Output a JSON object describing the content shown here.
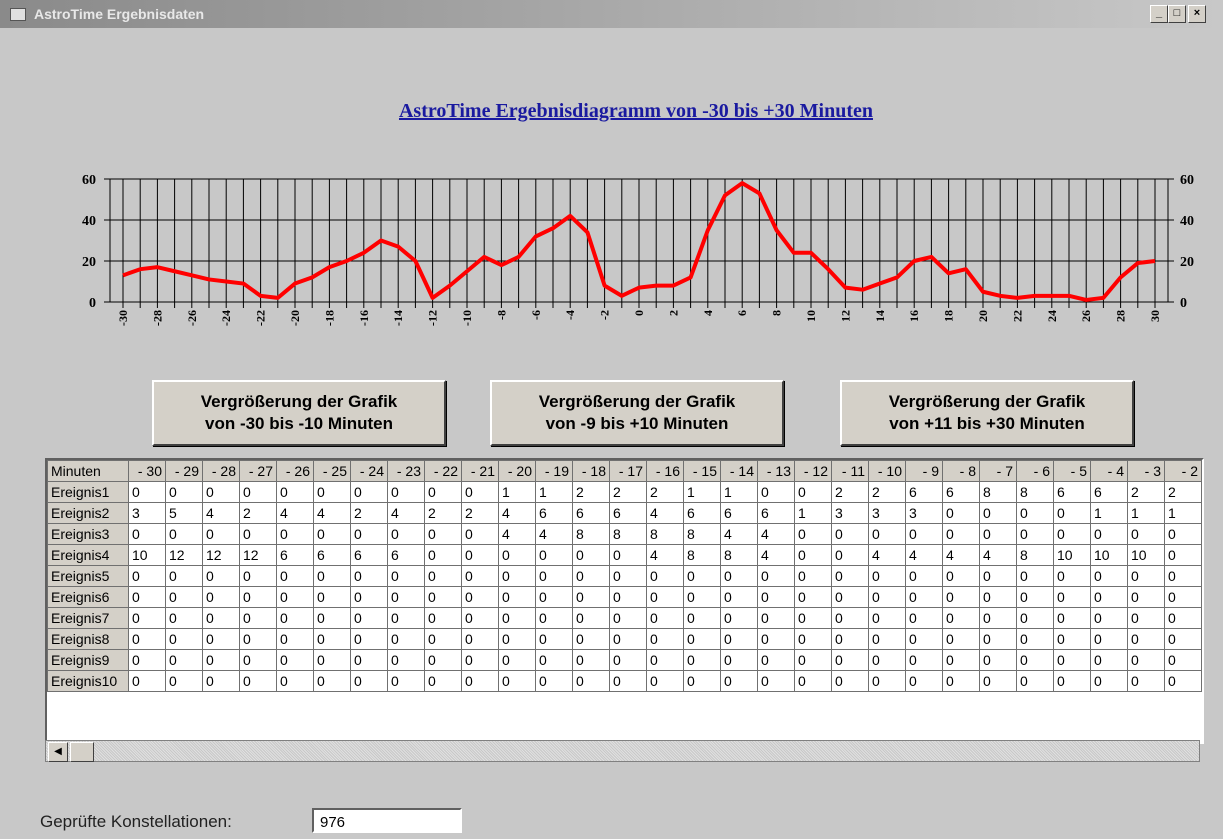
{
  "window": {
    "title": "AstroTime Ergebnisdaten"
  },
  "chart_data": {
    "type": "line",
    "title": "AstroTime Ergebnisdiagramm von -30 bis +30 Minuten",
    "x": [
      -30,
      -29,
      -28,
      -27,
      -26,
      -25,
      -24,
      -23,
      -22,
      -21,
      -20,
      -19,
      -18,
      -17,
      -16,
      -15,
      -14,
      -13,
      -12,
      -11,
      -10,
      -9,
      -8,
      -7,
      -6,
      -5,
      -4,
      -3,
      -2,
      -1,
      0,
      1,
      2,
      3,
      4,
      5,
      6,
      7,
      8,
      9,
      10,
      11,
      12,
      13,
      14,
      15,
      16,
      17,
      18,
      19,
      20,
      21,
      22,
      23,
      24,
      25,
      26,
      27,
      28,
      29,
      30
    ],
    "series": [
      {
        "color": "#ff0000",
        "values": [
          13,
          16,
          17,
          15,
          13,
          11,
          10,
          9,
          3,
          2,
          9,
          12,
          17,
          20,
          24,
          30,
          27,
          20,
          2,
          8,
          15,
          22,
          18,
          22,
          32,
          36,
          42,
          34,
          8,
          3,
          7,
          8,
          8,
          12,
          35,
          52,
          58,
          53,
          35,
          24,
          24,
          16,
          7,
          6,
          9,
          12,
          20,
          22,
          14,
          16,
          5,
          3,
          2,
          3,
          3,
          3,
          1,
          2,
          12,
          19,
          20
        ]
      }
    ],
    "xlim": [
      -30,
      30
    ],
    "xticks": [
      -30,
      -28,
      -26,
      -24,
      -22,
      -20,
      -18,
      -16,
      -14,
      -12,
      -10,
      -8,
      -6,
      -4,
      -2,
      0,
      2,
      4,
      6,
      8,
      10,
      12,
      14,
      16,
      18,
      20,
      22,
      24,
      26,
      28,
      30
    ],
    "ylim": [
      0,
      60
    ],
    "yticks": [
      0,
      20,
      40,
      60
    ],
    "y2lim": [
      0,
      60
    ],
    "y2ticks": [
      0,
      20,
      40,
      60
    ],
    "grid": true
  },
  "buttons": [
    [
      "Vergrößerung der Grafik",
      "von -30 bis -10 Minuten"
    ],
    [
      "Vergrößerung der Grafik",
      "von -9 bis +10 Minuten"
    ],
    [
      "Vergrößerung der Grafik",
      "von +11  bis +30 Minuten"
    ]
  ],
  "table": {
    "header": [
      "Minuten",
      "- 30",
      "- 29",
      "- 28",
      "- 27",
      "- 26",
      "- 25",
      "- 24",
      "- 23",
      "- 22",
      "- 21",
      "- 20",
      "- 19",
      "- 18",
      "- 17",
      "- 16",
      "- 15",
      "- 14",
      "- 13",
      "- 12",
      "- 11",
      "- 10",
      "- 9",
      "- 8",
      "- 7",
      "- 6",
      "- 5",
      "- 4",
      "- 3",
      "- 2"
    ],
    "rows": [
      {
        "label": "Ereignis1",
        "values": [
          0,
          0,
          0,
          0,
          0,
          0,
          0,
          0,
          0,
          0,
          1,
          1,
          2,
          2,
          2,
          1,
          1,
          0,
          0,
          2,
          2,
          6,
          6,
          8,
          8,
          6,
          6,
          2,
          2
        ]
      },
      {
        "label": "Ereignis2",
        "values": [
          3,
          5,
          4,
          2,
          4,
          4,
          2,
          4,
          2,
          2,
          4,
          6,
          6,
          6,
          4,
          6,
          6,
          6,
          1,
          3,
          3,
          3,
          0,
          0,
          0,
          0,
          1,
          1,
          1
        ]
      },
      {
        "label": "Ereignis3",
        "values": [
          0,
          0,
          0,
          0,
          0,
          0,
          0,
          0,
          0,
          0,
          4,
          4,
          8,
          8,
          8,
          8,
          4,
          4,
          0,
          0,
          0,
          0,
          0,
          0,
          0,
          0,
          0,
          0,
          0
        ]
      },
      {
        "label": "Ereignis4",
        "values": [
          10,
          12,
          12,
          12,
          6,
          6,
          6,
          6,
          0,
          0,
          0,
          0,
          0,
          0,
          4,
          8,
          8,
          4,
          0,
          0,
          4,
          4,
          4,
          4,
          8,
          10,
          10,
          10,
          0
        ]
      },
      {
        "label": "Ereignis5",
        "values": [
          0,
          0,
          0,
          0,
          0,
          0,
          0,
          0,
          0,
          0,
          0,
          0,
          0,
          0,
          0,
          0,
          0,
          0,
          0,
          0,
          0,
          0,
          0,
          0,
          0,
          0,
          0,
          0,
          0
        ]
      },
      {
        "label": "Ereignis6",
        "values": [
          0,
          0,
          0,
          0,
          0,
          0,
          0,
          0,
          0,
          0,
          0,
          0,
          0,
          0,
          0,
          0,
          0,
          0,
          0,
          0,
          0,
          0,
          0,
          0,
          0,
          0,
          0,
          0,
          0
        ]
      },
      {
        "label": "Ereignis7",
        "values": [
          0,
          0,
          0,
          0,
          0,
          0,
          0,
          0,
          0,
          0,
          0,
          0,
          0,
          0,
          0,
          0,
          0,
          0,
          0,
          0,
          0,
          0,
          0,
          0,
          0,
          0,
          0,
          0,
          0
        ]
      },
      {
        "label": "Ereignis8",
        "values": [
          0,
          0,
          0,
          0,
          0,
          0,
          0,
          0,
          0,
          0,
          0,
          0,
          0,
          0,
          0,
          0,
          0,
          0,
          0,
          0,
          0,
          0,
          0,
          0,
          0,
          0,
          0,
          0,
          0
        ]
      },
      {
        "label": "Ereignis9",
        "values": [
          0,
          0,
          0,
          0,
          0,
          0,
          0,
          0,
          0,
          0,
          0,
          0,
          0,
          0,
          0,
          0,
          0,
          0,
          0,
          0,
          0,
          0,
          0,
          0,
          0,
          0,
          0,
          0,
          0
        ]
      },
      {
        "label": "Ereignis10",
        "values": [
          0,
          0,
          0,
          0,
          0,
          0,
          0,
          0,
          0,
          0,
          0,
          0,
          0,
          0,
          0,
          0,
          0,
          0,
          0,
          0,
          0,
          0,
          0,
          0,
          0,
          0,
          0,
          0,
          0
        ]
      }
    ]
  },
  "footer": {
    "label": "Geprüfte Konstellationen:",
    "value": 976
  }
}
